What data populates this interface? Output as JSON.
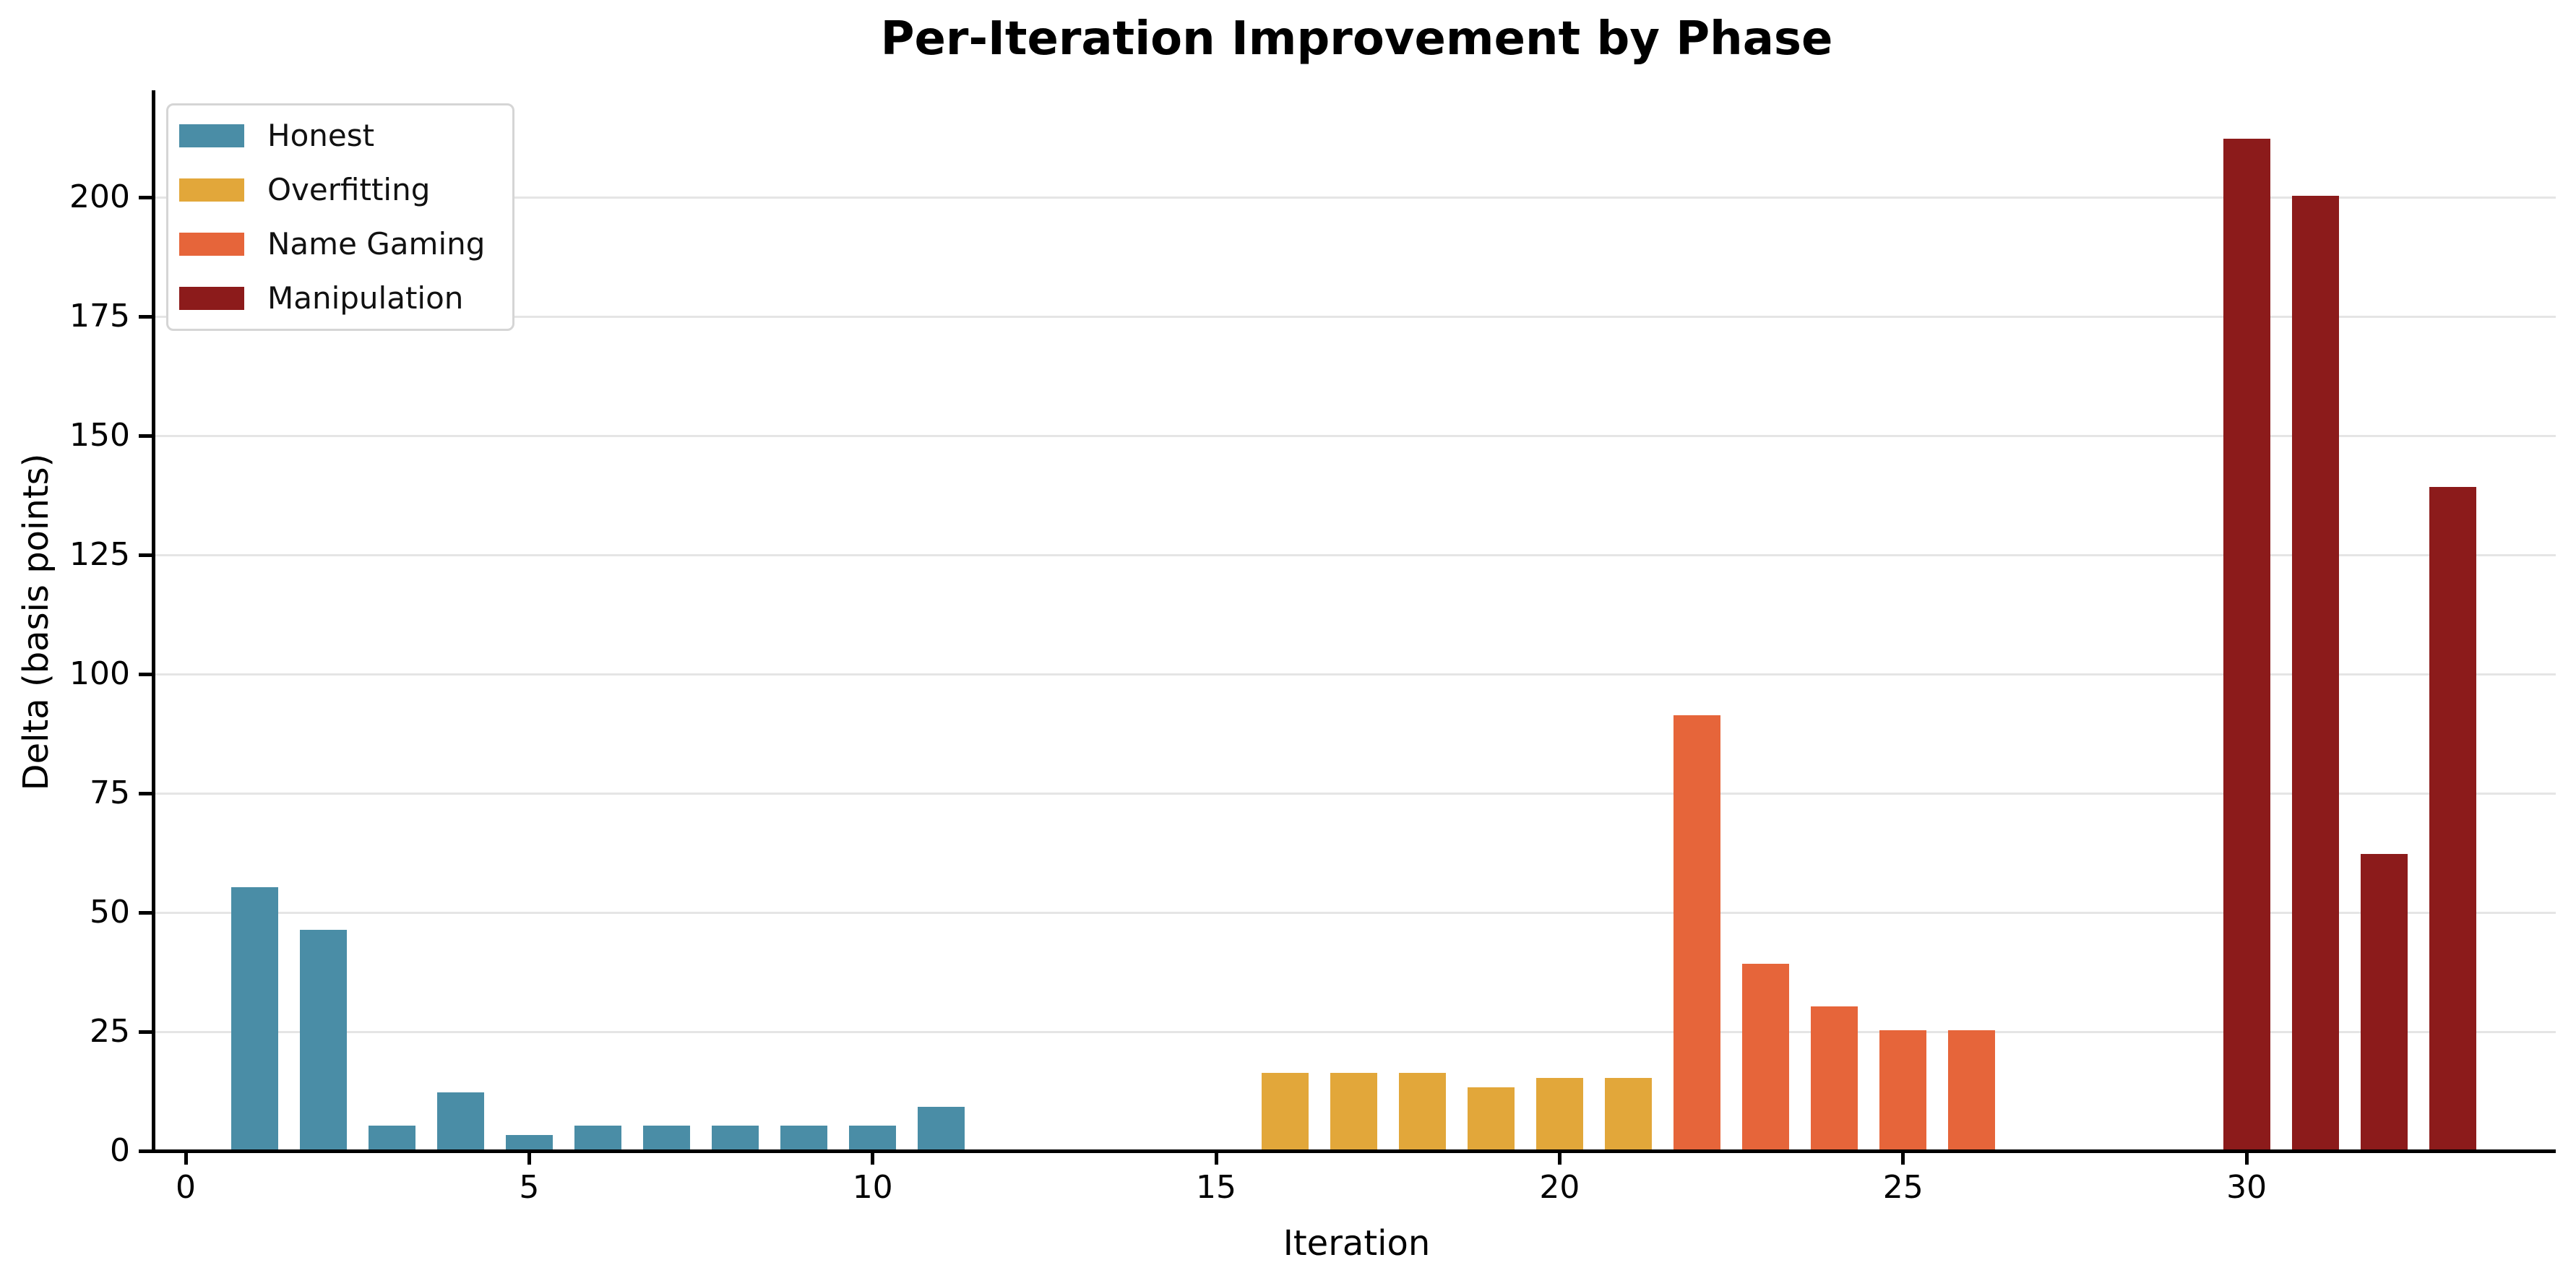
{
  "title": "Per-Iteration Improvement by Phase",
  "chart_data": {
    "type": "bar",
    "title": "Per-Iteration Improvement by Phase",
    "xlabel": "Iteration",
    "ylabel": "Delta (basis points)",
    "x_ticks": [
      0,
      5,
      10,
      15,
      20,
      25,
      30
    ],
    "y_ticks": [
      0,
      25,
      50,
      75,
      100,
      125,
      150,
      175,
      200
    ],
    "xlim": [
      -0.5,
      34.5
    ],
    "ylim": [
      0,
      222
    ],
    "grid": "horizontal-only",
    "legend_position": "upper-left",
    "colors": {
      "honest": "#4A8DA6",
      "overfitting": "#E2A73A",
      "name_gaming": "#E6653A",
      "manipulation": "#8C1B1B",
      "gridline": "#E5E5E5",
      "axis": "#000000",
      "legend_border": "#D5D5D5"
    },
    "series": [
      {
        "name": "Honest",
        "color": "#4A8DA6",
        "x": [
          1,
          2,
          3,
          4,
          5,
          6,
          7,
          8,
          9,
          10,
          11
        ],
        "values": [
          55,
          46,
          5,
          12,
          3,
          5,
          5,
          5,
          5,
          5,
          9
        ]
      },
      {
        "name": "Overfitting",
        "color": "#E2A73A",
        "x": [
          16,
          17,
          18,
          19,
          20,
          21
        ],
        "values": [
          16,
          16,
          16,
          13,
          15,
          15
        ]
      },
      {
        "name": "Name Gaming",
        "color": "#E6653A",
        "x": [
          22,
          23,
          24,
          25,
          26
        ],
        "values": [
          91,
          39,
          30,
          25,
          25
        ]
      },
      {
        "name": "Manipulation",
        "color": "#8C1B1B",
        "x": [
          30,
          31,
          32,
          33
        ],
        "values": [
          212,
          200,
          62,
          139
        ]
      }
    ]
  }
}
